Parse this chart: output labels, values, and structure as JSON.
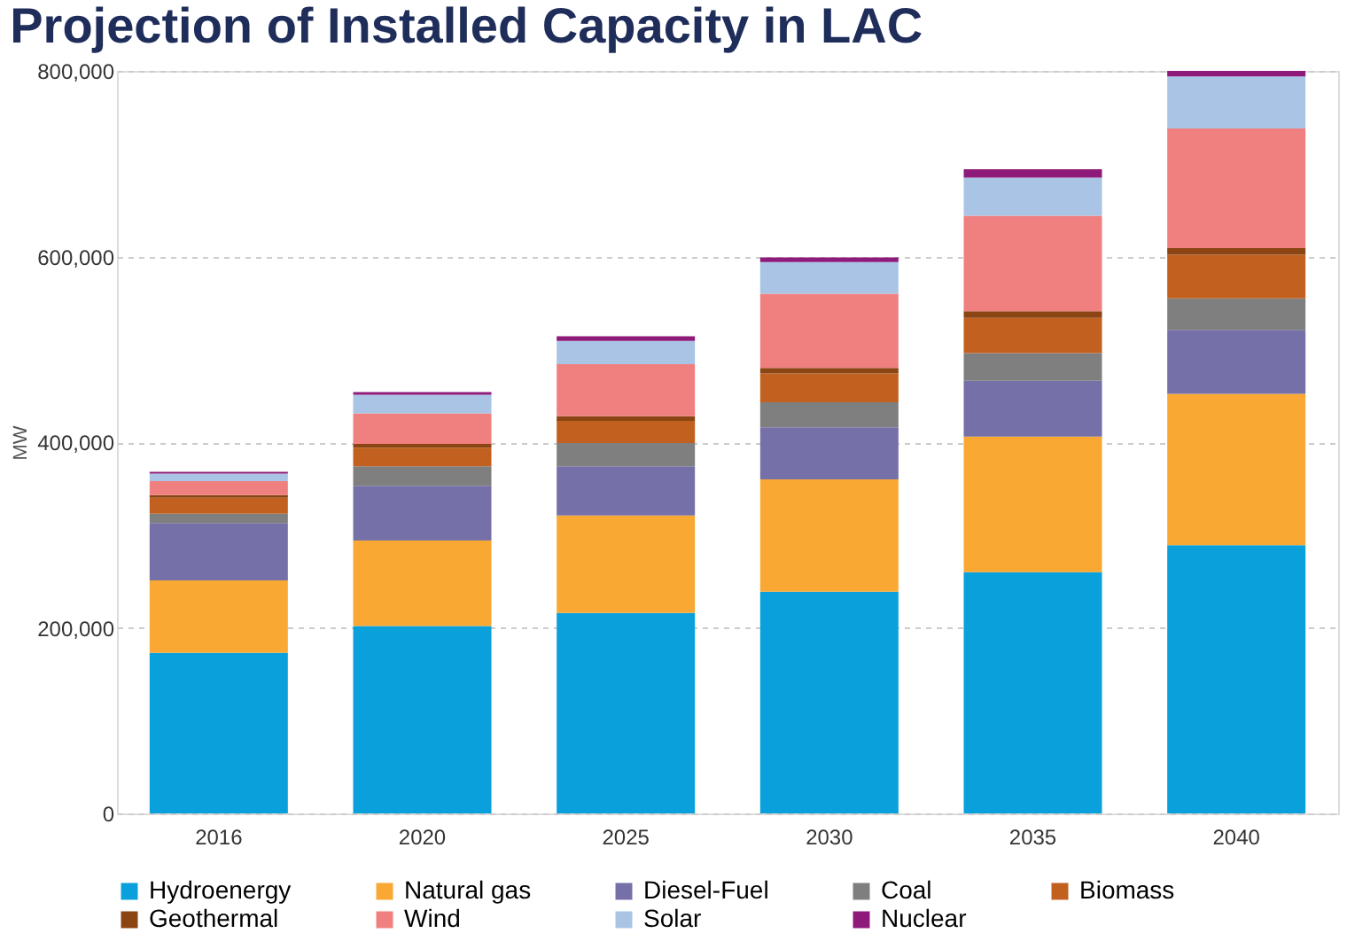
{
  "chart_data": {
    "type": "bar",
    "stacked": true,
    "title": "Projection of Installed Capacity in LAC",
    "ylabel": "MW",
    "categories": [
      "2016",
      "2020",
      "2025",
      "2030",
      "2035",
      "2040"
    ],
    "series": [
      {
        "name": "Hydroenergy",
        "color": "#0aa0dc",
        "values": [
          173000,
          202000,
          216000,
          239000,
          260000,
          289000
        ]
      },
      {
        "name": "Natural gas",
        "color": "#f9a933",
        "values": [
          78000,
          92000,
          105000,
          121000,
          146000,
          163000
        ]
      },
      {
        "name": "Diesel-Fuel",
        "color": "#7570a8",
        "values": [
          62000,
          59000,
          53000,
          56000,
          60000,
          69000
        ]
      },
      {
        "name": "Coal",
        "color": "#7f7f7f",
        "values": [
          10000,
          21000,
          25000,
          27000,
          30000,
          34000
        ]
      },
      {
        "name": "Biomass",
        "color": "#c2601f",
        "values": [
          17000,
          20000,
          24000,
          31000,
          38000,
          47000
        ]
      },
      {
        "name": "Geothermal",
        "color": "#8b4513",
        "values": [
          3000,
          4000,
          5000,
          6000,
          7000,
          7000
        ]
      },
      {
        "name": "Wind",
        "color": "#f08080",
        "values": [
          15000,
          33000,
          56000,
          80000,
          103000,
          129000
        ]
      },
      {
        "name": "Solar",
        "color": "#a9c4e4",
        "values": [
          8000,
          20000,
          25000,
          34000,
          41000,
          56000
        ]
      },
      {
        "name": "Nuclear",
        "color": "#8e1a7a",
        "values": [
          2000,
          3000,
          5000,
          5000,
          9000,
          6000
        ]
      }
    ],
    "ylim": [
      0,
      800000
    ],
    "yticks": [
      0,
      {
        "value": 200000,
        "label": "200,000"
      },
      {
        "value": 400000,
        "label": "400,000"
      },
      {
        "value": 600000,
        "label": "600,000"
      },
      {
        "value": 800000,
        "label": "800,000"
      }
    ],
    "grid": "y",
    "legend": "bottom"
  }
}
